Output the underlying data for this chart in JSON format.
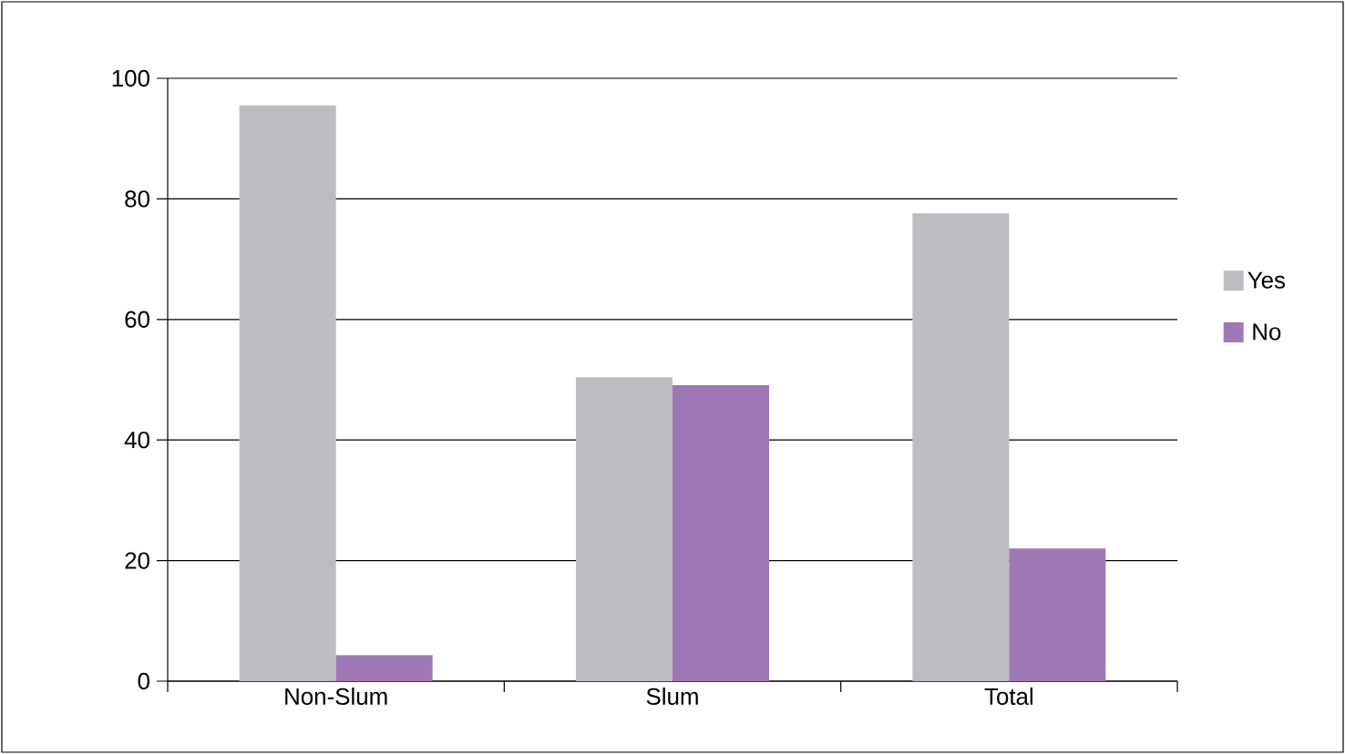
{
  "chart_data": {
    "type": "bar",
    "categories": [
      "Non-Slum",
      "Slum",
      "Total"
    ],
    "series": [
      {
        "name": "Yes",
        "color": "#bcbdc1",
        "values": [
          95.5,
          50.4,
          77.6
        ]
      },
      {
        "name": "No",
        "color": "#9e77b5",
        "values": [
          4.3,
          49.1,
          22.0
        ]
      }
    ],
    "ylim": [
      0,
      100
    ],
    "yticks": [
      0,
      20,
      40,
      60,
      80,
      100
    ],
    "grid": "y",
    "legend": "right"
  }
}
